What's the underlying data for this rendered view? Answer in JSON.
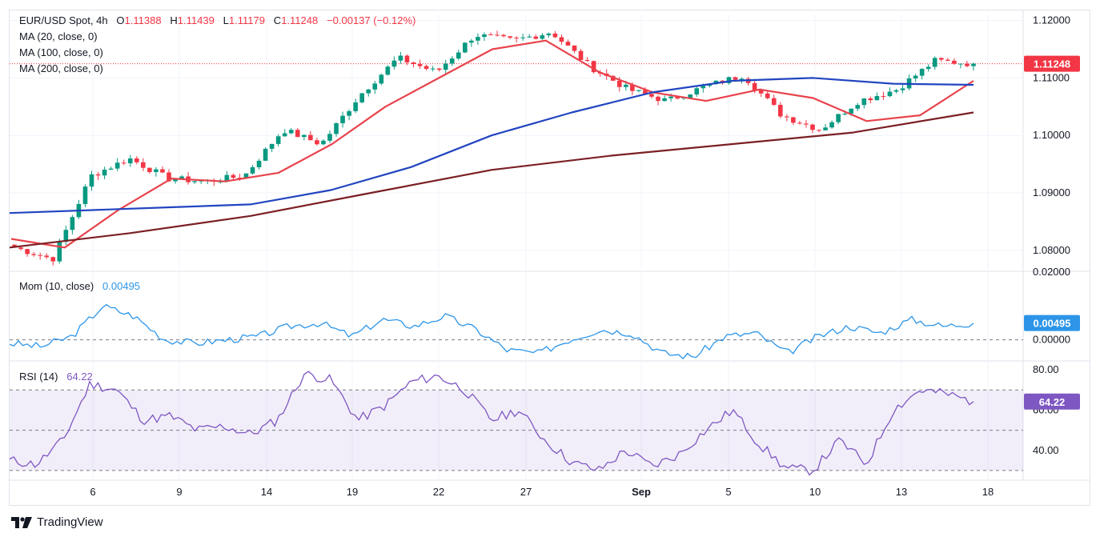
{
  "header": {
    "symbol": "EUR/USD Spot, 4h",
    "o_label": "O",
    "o_value": "1.11388",
    "h_label": "H",
    "h_value": "1.11439",
    "l_label": "L",
    "l_value": "1.11179",
    "c_label": "C",
    "c_value": "1.11248",
    "change": "−0.00137 (−0.12%)"
  },
  "legend": {
    "ma20": "MA (20, close, 0)",
    "ma100": "MA (100, close, 0)",
    "ma200": "MA (200, close, 0)",
    "mom_label": "Mom (10, close)",
    "mom_value": "0.00495",
    "rsi_label": "RSI (14)",
    "rsi_value": "64.22"
  },
  "price_axis": {
    "ticks": [
      "1.12000",
      "1.11000",
      "1.10000",
      "1.09000",
      "1.08000"
    ],
    "badge": "1.11248"
  },
  "mom_axis": {
    "ticks": [
      "0.02000",
      "0.00000"
    ],
    "badge": "0.00495"
  },
  "rsi_axis": {
    "ticks": [
      "80.00",
      "60.00",
      "40.00"
    ],
    "badge": "64.22"
  },
  "x_axis": {
    "ticks": [
      "6",
      "9",
      "14",
      "19",
      "22",
      "27",
      "Sep",
      "5",
      "10",
      "13",
      "18"
    ]
  },
  "brand": {
    "name": "TradingView"
  },
  "colors": {
    "up": "#089981",
    "down": "#f23645",
    "ma20": "#e8434c",
    "ma100": "#2245c0",
    "ma200": "#7b1f24",
    "mom": "#2c95e8",
    "rsi": "#7e57c2"
  },
  "chart_data": [
    {
      "type": "candlestick",
      "title": "EUR/USD Spot, 4h",
      "ylim": [
        1.0765,
        1.1205
      ],
      "x_ticks": [
        "6",
        "9",
        "14",
        "19",
        "22",
        "27",
        "Sep",
        "5",
        "10",
        "13",
        "18"
      ],
      "last_close": 1.11248,
      "ohlc_keypoints": [
        {
          "x": "Aug 1",
          "close": 1.0805
        },
        {
          "x": "Aug 3",
          "close": 1.0785
        },
        {
          "x": "Aug 5",
          "close": 1.093
        },
        {
          "x": "Aug 6",
          "close": 1.096
        },
        {
          "x": "Aug 7",
          "close": 1.0925
        },
        {
          "x": "Aug 9",
          "close": 1.092
        },
        {
          "x": "Aug 12",
          "close": 1.093
        },
        {
          "x": "Aug 14",
          "close": 1.101
        },
        {
          "x": "Aug 16",
          "close": 1.0985
        },
        {
          "x": "Aug 19",
          "close": 1.107
        },
        {
          "x": "Aug 21",
          "close": 1.1135
        },
        {
          "x": "Aug 22",
          "close": 1.111
        },
        {
          "x": "Aug 23",
          "close": 1.1175
        },
        {
          "x": "Aug 26",
          "close": 1.1165
        },
        {
          "x": "Aug 27",
          "close": 1.118
        },
        {
          "x": "Aug 28",
          "close": 1.112
        },
        {
          "x": "Aug 30",
          "close": 1.108
        },
        {
          "x": "Sep 2",
          "close": 1.106
        },
        {
          "x": "Sep 4",
          "close": 1.1085
        },
        {
          "x": "Sep 6",
          "close": 1.1105
        },
        {
          "x": "Sep 9",
          "close": 1.1035
        },
        {
          "x": "Sep 11",
          "close": 1.101
        },
        {
          "x": "Sep 12",
          "close": 1.106
        },
        {
          "x": "Sep 13",
          "close": 1.108
        },
        {
          "x": "Sep 16",
          "close": 1.113
        },
        {
          "x": "Sep 17",
          "close": 1.11248
        }
      ],
      "series": [
        {
          "name": "MA (20, close, 0)",
          "values": [
            1.082,
            1.0805,
            1.087,
            1.0925,
            1.092,
            1.0935,
            1.0985,
            1.105,
            1.11,
            1.115,
            1.1165,
            1.111,
            1.1075,
            1.106,
            1.108,
            1.1065,
            1.1025,
            1.1035,
            1.1095
          ]
        },
        {
          "name": "MA (100, close, 0)",
          "values": [
            1.0865,
            1.087,
            1.0875,
            1.088,
            1.0905,
            1.0945,
            1.1,
            1.104,
            1.1075,
            1.1095,
            1.11,
            1.109,
            1.1088
          ]
        },
        {
          "name": "MA (200, close, 0)",
          "values": [
            1.0805,
            1.083,
            1.086,
            1.09,
            1.094,
            1.0965,
            1.0985,
            1.1005,
            1.104
          ]
        }
      ]
    },
    {
      "type": "line",
      "title": "Mom (10, close)",
      "ylim": [
        -0.006,
        0.02
      ],
      "series": [
        {
          "name": "Mom (10, close)",
          "values": [
            -0.001,
            -0.002,
            0.001,
            0.01,
            0.007,
            0.0,
            -0.001,
            0.0,
            0.001,
            0.004,
            0.005,
            0.001,
            0.006,
            0.004,
            0.007,
            0.003,
            -0.003,
            -0.004,
            0.0,
            0.003,
            0.002,
            -0.004,
            -0.005,
            0.001,
            0.002,
            -0.004,
            0.001,
            0.004,
            0.002,
            0.006,
            0.004,
            0.00495
          ]
        }
      ]
    },
    {
      "type": "line",
      "title": "RSI (14)",
      "ylim": [
        26,
        84
      ],
      "series": [
        {
          "name": "RSI (14)",
          "values": [
            35,
            33,
            45,
            73,
            70,
            55,
            57,
            50,
            52,
            48,
            55,
            78,
            75,
            55,
            62,
            74,
            77,
            70,
            55,
            60,
            45,
            34,
            30,
            40,
            32,
            38,
            50,
            60,
            43,
            31,
            30,
            45,
            33,
            60,
            70,
            68,
            64.22
          ]
        }
      ]
    }
  ]
}
